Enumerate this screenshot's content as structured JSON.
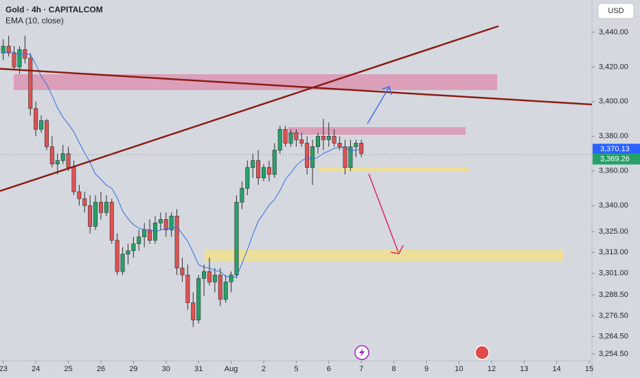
{
  "chart_data": {
    "type": "candlestick",
    "title": "Gold · 4h · CAPITALCOM",
    "subtitle": "EMA (10, close)",
    "currency": "USD",
    "up_color": "#26a269",
    "down_color": "#e05252",
    "ema_color": "#2f6fe4",
    "open": [
      3428,
      3432,
      3428,
      3420,
      3430,
      3425,
      3396,
      3384,
      3389,
      3374,
      3364,
      3366,
      3370,
      3362,
      3348,
      3344,
      3340,
      3328,
      3342,
      3336,
      3342,
      3320,
      3302,
      3312,
      3314,
      3318,
      3322,
      3326,
      3320,
      3330,
      3332,
      3326,
      3334,
      3304,
      3300,
      3284,
      3274,
      3298,
      3302,
      3296,
      3300,
      3286,
      3296,
      3300,
      3342,
      3350,
      3362,
      3366,
      3356,
      3362,
      3358,
      3372,
      3384,
      3376,
      3382,
      3378,
      3376,
      3362,
      3374,
      3380,
      3378,
      3380,
      3376,
      3374,
      3362,
      3374,
      3376
    ],
    "high": [
      3436,
      3438,
      3432,
      3432,
      3438,
      3428,
      3400,
      3392,
      3390,
      3380,
      3370,
      3375,
      3374,
      3366,
      3352,
      3348,
      3346,
      3346,
      3348,
      3346,
      3344,
      3324,
      3316,
      3318,
      3322,
      3326,
      3330,
      3332,
      3334,
      3336,
      3336,
      3336,
      3338,
      3310,
      3306,
      3290,
      3300,
      3306,
      3310,
      3304,
      3304,
      3300,
      3302,
      3346,
      3354,
      3366,
      3370,
      3372,
      3364,
      3366,
      3376,
      3386,
      3386,
      3384,
      3384,
      3382,
      3380,
      3378,
      3382,
      3390,
      3388,
      3384,
      3380,
      3378,
      3378,
      3378,
      3378
    ],
    "low": [
      3424,
      3426,
      3418,
      3416,
      3422,
      3392,
      3380,
      3382,
      3372,
      3362,
      3358,
      3364,
      3360,
      3346,
      3340,
      3336,
      3324,
      3326,
      3332,
      3334,
      3318,
      3300,
      3300,
      3306,
      3310,
      3314,
      3316,
      3318,
      3318,
      3326,
      3322,
      3322,
      3300,
      3296,
      3280,
      3270,
      3272,
      3288,
      3294,
      3290,
      3282,
      3284,
      3290,
      3298,
      3338,
      3346,
      3356,
      3352,
      3354,
      3354,
      3356,
      3370,
      3374,
      3374,
      3374,
      3374,
      3358,
      3352,
      3370,
      3372,
      3374,
      3374,
      3372,
      3358,
      3360,
      3368,
      3368
    ],
    "close": [
      3432,
      3428,
      3420,
      3430,
      3425,
      3396,
      3384,
      3389,
      3374,
      3364,
      3366,
      3370,
      3362,
      3348,
      3344,
      3340,
      3328,
      3342,
      3336,
      3342,
      3320,
      3302,
      3312,
      3314,
      3318,
      3322,
      3326,
      3320,
      3330,
      3332,
      3326,
      3334,
      3304,
      3300,
      3284,
      3274,
      3298,
      3302,
      3296,
      3300,
      3286,
      3296,
      3300,
      3342,
      3350,
      3362,
      3366,
      3356,
      3362,
      3358,
      3372,
      3384,
      3376,
      3382,
      3378,
      3376,
      3362,
      3374,
      3380,
      3378,
      3380,
      3376,
      3374,
      3362,
      3374,
      3376,
      3370.13
    ],
    "ema": [
      3428,
      3428.7,
      3428.6,
      3427,
      3427.6,
      3427.1,
      3421.5,
      3414.7,
      3410,
      3403.5,
      3396.4,
      3390.9,
      3387.1,
      3382.6,
      3376.3,
      3370.4,
      3364.9,
      3358.2,
      3355.3,
      3351.8,
      3350,
      3344.6,
      3336.9,
      3332.4,
      3329,
      3327,
      3326.1,
      3326.1,
      3325,
      3325.9,
      3327,
      3326.8,
      3328.1,
      3323.7,
      3319.4,
      3313,
      3305.9,
      3304.5,
      3304,
      3302.6,
      3302.1,
      3299.2,
      3298.6,
      3298.9,
      3306.7,
      3314.6,
      3323.2,
      3331,
      3335.5,
      3340.3,
      3343.5,
      3348.7,
      3355.1,
      3358.9,
      3363.1,
      3365.8,
      3367.7,
      3366.6,
      3367.9,
      3370.1,
      3371.5,
      3373.1,
      3373.6,
      3373.7,
      3371.6,
      3372,
      3372.7
    ],
    "price_labels": [
      {
        "value": 3370.13,
        "label": "3,370.13",
        "color": "#2962ff"
      },
      {
        "value": 3369.26,
        "label": "3,369.26",
        "color": "#26a269"
      }
    ],
    "xlim": [
      -0.6,
      108.5
    ],
    "ylim": [
      3250.5,
      3458.6
    ],
    "xticks": [
      {
        "value": 0,
        "label": "23"
      },
      {
        "value": 6,
        "label": "24"
      },
      {
        "value": 12,
        "label": "25"
      },
      {
        "value": 18,
        "label": "26"
      },
      {
        "value": 24,
        "label": "29"
      },
      {
        "value": 30,
        "label": "30"
      },
      {
        "value": 36,
        "label": "31"
      },
      {
        "value": 42,
        "label": "Aug"
      },
      {
        "value": 48,
        "label": "2"
      },
      {
        "value": 54,
        "label": "5"
      },
      {
        "value": 60,
        "label": "6"
      },
      {
        "value": 66,
        "label": "7"
      },
      {
        "value": 72,
        "label": "8"
      },
      {
        "value": 78,
        "label": "9"
      },
      {
        "value": 84,
        "label": "10"
      },
      {
        "value": 90,
        "label": "12"
      },
      {
        "value": 96,
        "label": "13"
      },
      {
        "value": 102,
        "label": "14"
      },
      {
        "value": 108,
        "label": "15"
      }
    ],
    "yticks": [
      {
        "value": 3440,
        "label": "3,440.00"
      },
      {
        "value": 3420,
        "label": "3,420.00"
      },
      {
        "value": 3400,
        "label": "3,400.00"
      },
      {
        "value": 3380,
        "label": "3,380.00"
      },
      {
        "value": 3360,
        "label": "3,360.00"
      },
      {
        "value": 3340,
        "label": "3,340.00"
      },
      {
        "value": 3325,
        "label": "3,325.00"
      },
      {
        "value": 3313,
        "label": "3,313.00"
      },
      {
        "value": 3301,
        "label": "3,301.00"
      },
      {
        "value": 3288.5,
        "label": "3,288.50"
      },
      {
        "value": 3276.5,
        "label": "3,276.50"
      },
      {
        "value": 3264.5,
        "label": "3,264.50"
      },
      {
        "value": 3254.5,
        "label": "3,254.50"
      }
    ]
  }
}
